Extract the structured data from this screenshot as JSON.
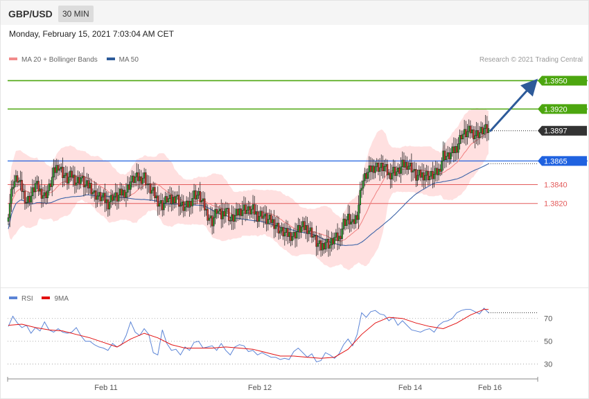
{
  "header": {
    "symbol": "GBP/USD",
    "timeframe": "30 MIN",
    "datetime": "Monday, February 15, 2021 7:03:04 AM CET"
  },
  "price_panel": {
    "legend": [
      {
        "label": "MA 20 + Bollinger Bands",
        "color": "#f28b8b"
      },
      {
        "label": "MA 50",
        "color": "#2d5a99"
      }
    ],
    "copyright": "Research © 2021 Trading Central",
    "colors": {
      "up_candle": "#27a12b",
      "down_candle": "#d6342a",
      "band_fill": "#ffd6d6",
      "ma20": "#f08080",
      "ma50": "#3d64a8",
      "resistance": "#4ca60f",
      "support_pivot": "#1f62e0",
      "support": "#e35a5a",
      "arrow": "#2d5a99"
    }
  },
  "rsi_panel": {
    "legend": [
      {
        "label": "RSI",
        "color": "#5b84d6"
      },
      {
        "label": "9MA",
        "color": "#e21010"
      }
    ]
  },
  "chart_data": [
    {
      "type": "candlestick",
      "title": "GBP/USD 30 MIN",
      "ylim": [
        1.3745,
        1.3965
      ],
      "x_ticks": [
        "Feb 11",
        "Feb 12",
        "Feb 14",
        "Feb 16"
      ],
      "last_price": "1.3897",
      "levels": [
        {
          "label": "1.3950",
          "value": 1.395,
          "kind": "resistance"
        },
        {
          "label": "1.3920",
          "value": 1.392,
          "kind": "resistance"
        },
        {
          "label": "1.3897",
          "value": 1.3897,
          "kind": "last"
        },
        {
          "label": "1.3865",
          "value": 1.3865,
          "kind": "pivot"
        },
        {
          "label": "1.3840",
          "value": 1.384,
          "kind": "support"
        },
        {
          "label": "1.3820",
          "value": 1.382,
          "kind": "support"
        }
      ],
      "path_points": [
        [
          0,
          1.3811
        ],
        [
          3,
          1.3842
        ],
        [
          6,
          1.3846
        ],
        [
          9,
          1.3835
        ],
        [
          12,
          1.3822
        ],
        [
          15,
          1.3828
        ],
        [
          18,
          1.384
        ],
        [
          21,
          1.3833
        ],
        [
          24,
          1.3828
        ],
        [
          27,
          1.3836
        ],
        [
          30,
          1.3852
        ],
        [
          33,
          1.3861
        ],
        [
          36,
          1.3852
        ],
        [
          39,
          1.3845
        ],
        [
          42,
          1.385
        ],
        [
          45,
          1.3843
        ],
        [
          48,
          1.3847
        ],
        [
          51,
          1.3838
        ],
        [
          54,
          1.3839
        ],
        [
          57,
          1.383
        ],
        [
          60,
          1.3827
        ],
        [
          63,
          1.3825
        ],
        [
          66,
          1.382
        ],
        [
          69,
          1.3828
        ],
        [
          72,
          1.3826
        ],
        [
          75,
          1.3831
        ],
        [
          78,
          1.3833
        ],
        [
          81,
          1.3843
        ],
        [
          84,
          1.3847
        ],
        [
          87,
          1.3846
        ],
        [
          90,
          1.3849
        ],
        [
          93,
          1.3836
        ],
        [
          96,
          1.3831
        ],
        [
          99,
          1.3823
        ],
        [
          102,
          1.3818
        ],
        [
          105,
          1.3825
        ],
        [
          108,
          1.3822
        ],
        [
          111,
          1.3829
        ],
        [
          114,
          1.3818
        ],
        [
          117,
          1.3815
        ],
        [
          120,
          1.382
        ],
        [
          123,
          1.383
        ],
        [
          126,
          1.3828
        ],
        [
          129,
          1.3819
        ],
        [
          132,
          1.3808
        ],
        [
          135,
          1.3801
        ],
        [
          138,
          1.3813
        ],
        [
          141,
          1.3806
        ],
        [
          144,
          1.3816
        ],
        [
          147,
          1.3802
        ],
        [
          150,
          1.3806
        ],
        [
          153,
          1.3812
        ],
        [
          156,
          1.3815
        ],
        [
          159,
          1.3812
        ],
        [
          162,
          1.3813
        ],
        [
          165,
          1.3807
        ],
        [
          168,
          1.3809
        ],
        [
          171,
          1.3802
        ],
        [
          174,
          1.3802
        ],
        [
          177,
          1.3798
        ],
        [
          180,
          1.3791
        ],
        [
          183,
          1.3788
        ],
        [
          186,
          1.3787
        ],
        [
          189,
          1.3786
        ],
        [
          192,
          1.3792
        ],
        [
          195,
          1.3795
        ],
        [
          198,
          1.3794
        ],
        [
          201,
          1.3789
        ],
        [
          204,
          1.3778
        ],
        [
          207,
          1.3773
        ],
        [
          210,
          1.378
        ],
        [
          213,
          1.3776
        ],
        [
          216,
          1.3783
        ],
        [
          219,
          1.3783
        ],
        [
          222,
          1.38
        ],
        [
          225,
          1.3804
        ],
        [
          228,
          1.3797
        ],
        [
          231,
          1.3809
        ],
        [
          234,
          1.3841
        ],
        [
          237,
          1.385
        ],
        [
          240,
          1.3856
        ],
        [
          243,
          1.386
        ],
        [
          246,
          1.3858
        ],
        [
          249,
          1.3858
        ],
        [
          252,
          1.385
        ],
        [
          255,
          1.3855
        ],
        [
          258,
          1.3853
        ],
        [
          261,
          1.386
        ],
        [
          264,
          1.3862
        ],
        [
          267,
          1.3858
        ],
        [
          270,
          1.3848
        ],
        [
          273,
          1.385
        ],
        [
          276,
          1.3851
        ],
        [
          279,
          1.3849
        ],
        [
          282,
          1.385
        ],
        [
          285,
          1.3854
        ],
        [
          288,
          1.3872
        ],
        [
          291,
          1.3869
        ],
        [
          294,
          1.3874
        ],
        [
          297,
          1.388
        ],
        [
          300,
          1.3893
        ],
        [
          303,
          1.3894
        ],
        [
          306,
          1.3897
        ],
        [
          309,
          1.3893
        ],
        [
          312,
          1.3895
        ],
        [
          315,
          1.3898
        ],
        [
          318,
          1.3897
        ]
      ],
      "rsi": {
        "ylim": [
          20,
          82
        ],
        "ticks": [
          "70",
          "50",
          "30"
        ],
        "rsi_points": [
          [
            0,
            63
          ],
          [
            3,
            72
          ],
          [
            6,
            66
          ],
          [
            9,
            62
          ],
          [
            12,
            64
          ],
          [
            15,
            57
          ],
          [
            18,
            62
          ],
          [
            21,
            59
          ],
          [
            24,
            67
          ],
          [
            27,
            60
          ],
          [
            30,
            58
          ],
          [
            33,
            61
          ],
          [
            36,
            58
          ],
          [
            39,
            57
          ],
          [
            42,
            58
          ],
          [
            45,
            62
          ],
          [
            48,
            55
          ],
          [
            51,
            50
          ],
          [
            54,
            50
          ],
          [
            57,
            47
          ],
          [
            60,
            45
          ],
          [
            63,
            44
          ],
          [
            66,
            42
          ],
          [
            69,
            48
          ],
          [
            72,
            45
          ],
          [
            75,
            47
          ],
          [
            78,
            55
          ],
          [
            81,
            67
          ],
          [
            84,
            58
          ],
          [
            87,
            55
          ],
          [
            90,
            61
          ],
          [
            93,
            56
          ],
          [
            96,
            40
          ],
          [
            99,
            38
          ],
          [
            102,
            60
          ],
          [
            105,
            48
          ],
          [
            108,
            42
          ],
          [
            111,
            43
          ],
          [
            114,
            38
          ],
          [
            117,
            45
          ],
          [
            120,
            42
          ],
          [
            123,
            49
          ],
          [
            126,
            50
          ],
          [
            129,
            44
          ],
          [
            132,
            45
          ],
          [
            135,
            46
          ],
          [
            138,
            42
          ],
          [
            141,
            48
          ],
          [
            144,
            42
          ],
          [
            147,
            38
          ],
          [
            150,
            45
          ],
          [
            153,
            47
          ],
          [
            156,
            46
          ],
          [
            159,
            41
          ],
          [
            162,
            42
          ],
          [
            165,
            38
          ],
          [
            168,
            40
          ],
          [
            171,
            38
          ],
          [
            174,
            36
          ],
          [
            177,
            36
          ],
          [
            180,
            34
          ],
          [
            183,
            35
          ],
          [
            186,
            34
          ],
          [
            189,
            41
          ],
          [
            192,
            44
          ],
          [
            195,
            40
          ],
          [
            198,
            36
          ],
          [
            201,
            39
          ],
          [
            204,
            32
          ],
          [
            207,
            33
          ],
          [
            210,
            40
          ],
          [
            213,
            38
          ],
          [
            216,
            35
          ],
          [
            219,
            39
          ],
          [
            222,
            47
          ],
          [
            225,
            52
          ],
          [
            228,
            46
          ],
          [
            231,
            56
          ],
          [
            234,
            75
          ],
          [
            237,
            71
          ],
          [
            240,
            76
          ],
          [
            243,
            77
          ],
          [
            246,
            74
          ],
          [
            249,
            73
          ],
          [
            252,
            68
          ],
          [
            255,
            71
          ],
          [
            258,
            64
          ],
          [
            261,
            68
          ],
          [
            264,
            64
          ],
          [
            267,
            60
          ],
          [
            270,
            59
          ],
          [
            273,
            58
          ],
          [
            276,
            60
          ],
          [
            279,
            61
          ],
          [
            282,
            58
          ],
          [
            285,
            64
          ],
          [
            288,
            67
          ],
          [
            291,
            68
          ],
          [
            294,
            70
          ],
          [
            297,
            75
          ],
          [
            300,
            77
          ],
          [
            303,
            78
          ],
          [
            306,
            78
          ],
          [
            309,
            76
          ],
          [
            312,
            74
          ],
          [
            315,
            79
          ],
          [
            318,
            75
          ]
        ],
        "ma9_points": [
          [
            0,
            64
          ],
          [
            9,
            65
          ],
          [
            18,
            62
          ],
          [
            27,
            60
          ],
          [
            36,
            59
          ],
          [
            45,
            56
          ],
          [
            54,
            53
          ],
          [
            63,
            49
          ],
          [
            72,
            45
          ],
          [
            81,
            52
          ],
          [
            90,
            57
          ],
          [
            99,
            53
          ],
          [
            108,
            47
          ],
          [
            117,
            44
          ],
          [
            126,
            44
          ],
          [
            135,
            44
          ],
          [
            144,
            45
          ],
          [
            153,
            44
          ],
          [
            162,
            43
          ],
          [
            171,
            40
          ],
          [
            180,
            37
          ],
          [
            189,
            37
          ],
          [
            198,
            36
          ],
          [
            207,
            35
          ],
          [
            216,
            36
          ],
          [
            225,
            43
          ],
          [
            234,
            56
          ],
          [
            243,
            66
          ],
          [
            252,
            71
          ],
          [
            261,
            70
          ],
          [
            270,
            66
          ],
          [
            279,
            63
          ],
          [
            288,
            61
          ],
          [
            297,
            66
          ],
          [
            306,
            73
          ],
          [
            315,
            78
          ],
          [
            318,
            78
          ]
        ]
      }
    }
  ]
}
